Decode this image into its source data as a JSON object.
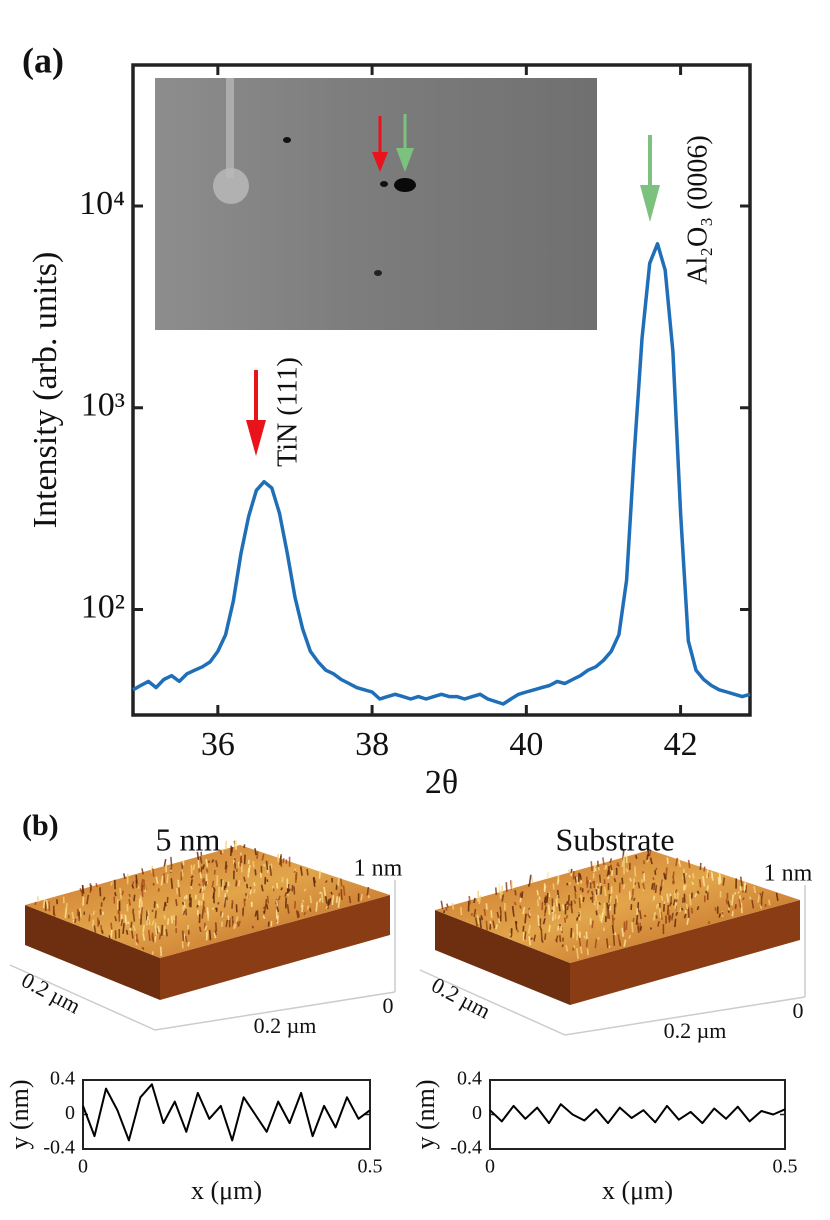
{
  "chart_data": [
    {
      "type": "line",
      "panel_label": "(a)",
      "xlabel": "2θ",
      "ylabel": "Intensity (arb. units)",
      "log_y": true,
      "xlim": [
        34.9,
        42.9
      ],
      "ylim": [
        30,
        50000
      ],
      "xticks": [
        36,
        38,
        40,
        42
      ],
      "yticks": [
        {
          "value": 100,
          "label": "10²"
        },
        {
          "value": 1000,
          "label": "10³"
        },
        {
          "value": 10000,
          "label": "10⁴"
        }
      ],
      "annotations": [
        "TiN (111)",
        "Al₂O₃ (0006)"
      ],
      "color": "#1f6fb8",
      "x": [
        34.9,
        35.0,
        35.1,
        35.2,
        35.3,
        35.4,
        35.5,
        35.6,
        35.7,
        35.8,
        35.9,
        36.0,
        36.1,
        36.2,
        36.3,
        36.4,
        36.5,
        36.6,
        36.7,
        36.8,
        36.9,
        37.0,
        37.1,
        37.2,
        37.3,
        37.4,
        37.5,
        37.6,
        37.7,
        37.8,
        37.9,
        38.0,
        38.1,
        38.2,
        38.3,
        38.4,
        38.5,
        38.6,
        38.7,
        38.8,
        38.9,
        39.0,
        39.1,
        39.2,
        39.3,
        39.4,
        39.5,
        39.6,
        39.7,
        39.8,
        39.9,
        40.0,
        40.1,
        40.2,
        40.3,
        40.4,
        40.5,
        40.6,
        40.7,
        40.8,
        40.9,
        41.0,
        41.1,
        41.2,
        41.3,
        41.4,
        41.5,
        41.6,
        41.7,
        41.8,
        41.9,
        42.0,
        42.1,
        42.2,
        42.3,
        42.4,
        42.5,
        42.6,
        42.7,
        42.8,
        42.9
      ],
      "values": [
        40,
        42,
        44,
        41,
        45,
        47,
        44,
        48,
        50,
        52,
        55,
        62,
        75,
        110,
        190,
        290,
        390,
        430,
        400,
        300,
        190,
        115,
        80,
        62,
        55,
        50,
        48,
        45,
        43,
        41,
        40,
        39,
        36,
        37,
        38,
        37,
        36,
        37,
        36,
        37,
        38,
        37,
        37,
        36,
        37,
        38,
        36,
        35,
        34,
        36,
        38,
        39,
        40,
        41,
        42,
        44,
        43,
        45,
        47,
        50,
        52,
        56,
        62,
        75,
        140,
        600,
        2200,
        5200,
        6500,
        4800,
        1900,
        300,
        70,
        50,
        45,
        42,
        40,
        39,
        38,
        37,
        38
      ]
    },
    {
      "type": "surface",
      "panel_label": "(b)",
      "title": "5 nm",
      "z_label": "1 nm",
      "axis_labels": [
        "0.2 µm",
        "0.2 µm",
        "0"
      ]
    },
    {
      "type": "surface",
      "title": "Substrate",
      "z_label": "1 nm",
      "axis_labels": [
        "0.2 µm",
        "0.2 µm",
        "0"
      ]
    },
    {
      "type": "line",
      "xlabel": "x (μm)",
      "ylabel": "y (nm)",
      "xlim": [
        0,
        0.5
      ],
      "ylim": [
        -0.4,
        0.4
      ],
      "xticks": [
        0,
        0.5
      ],
      "yticks": [
        -0.4,
        0,
        0.4
      ],
      "color": "#000000",
      "x": [
        0,
        0.02,
        0.04,
        0.06,
        0.08,
        0.1,
        0.12,
        0.14,
        0.16,
        0.18,
        0.2,
        0.22,
        0.24,
        0.26,
        0.28,
        0.3,
        0.32,
        0.34,
        0.36,
        0.38,
        0.4,
        0.42,
        0.44,
        0.46,
        0.48,
        0.5
      ],
      "values": [
        0.1,
        -0.25,
        0.3,
        0.05,
        -0.3,
        0.2,
        0.35,
        -0.1,
        0.15,
        -0.2,
        0.25,
        -0.05,
        0.1,
        -0.3,
        0.2,
        0,
        -0.2,
        0.15,
        -0.1,
        0.25,
        -0.25,
        0.1,
        -0.15,
        0.2,
        -0.05,
        0.05
      ]
    },
    {
      "type": "line",
      "xlabel": "x (μm)",
      "ylabel": "y (nm)",
      "xlim": [
        0,
        0.5
      ],
      "ylim": [
        -0.4,
        0.4
      ],
      "xticks": [
        0,
        0.5
      ],
      "yticks": [
        -0.4,
        0,
        0.4
      ],
      "color": "#000000",
      "x": [
        0,
        0.02,
        0.04,
        0.06,
        0.08,
        0.1,
        0.12,
        0.14,
        0.16,
        0.18,
        0.2,
        0.22,
        0.24,
        0.26,
        0.28,
        0.3,
        0.32,
        0.34,
        0.36,
        0.38,
        0.4,
        0.42,
        0.44,
        0.46,
        0.48,
        0.5
      ],
      "values": [
        0.05,
        -0.08,
        0.1,
        -0.05,
        0.08,
        -0.1,
        0.12,
        0,
        -0.07,
        0.06,
        -0.1,
        0.08,
        -0.04,
        0.05,
        -0.09,
        0.1,
        -0.06,
        0.03,
        -0.1,
        0.07,
        -0.05,
        0.09,
        -0.08,
        0.04,
        0,
        0.06
      ]
    }
  ]
}
